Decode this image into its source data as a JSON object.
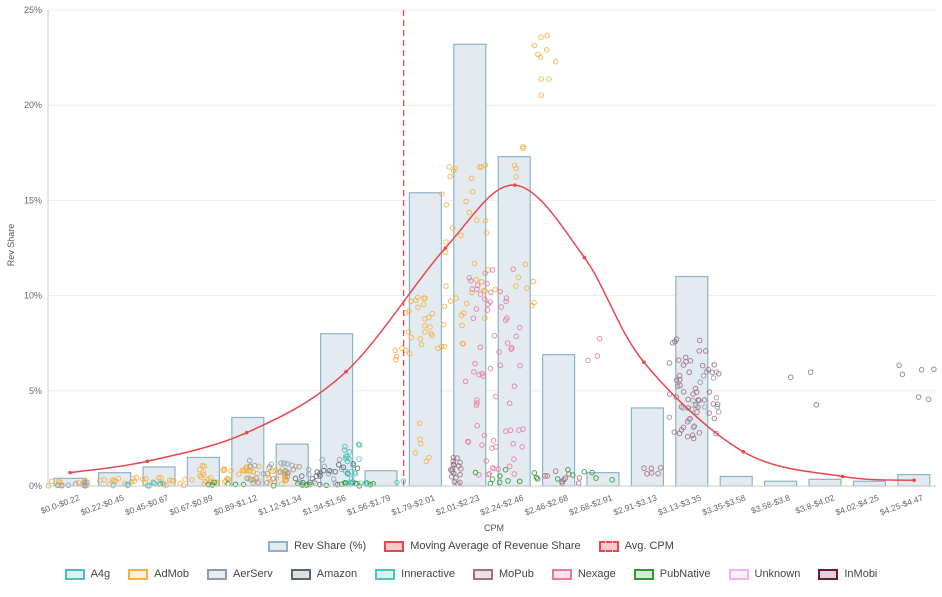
{
  "chart_data": {
    "type": "bar",
    "ylabel": "Rev Share",
    "xlabel": "CPM",
    "ylim": [
      0,
      25
    ],
    "y_ticks": [
      "0%",
      "5%",
      "10%",
      "15%",
      "20%",
      "25%"
    ],
    "y_tick_values": [
      0,
      5,
      10,
      15,
      20,
      25
    ],
    "categories": [
      "$0.0-$0.22",
      "$0.22-$0.45",
      "$0.45-$0.67",
      "$0.67-$0.89",
      "$0.89-$1.12",
      "$1.12-$1.34",
      "$1.34-$1.56",
      "$1.56-$1.79",
      "$1.79-$2.01",
      "$2.01-$2.23",
      "$2.24-$2.46",
      "$2.46-$2.68",
      "$2.68-$2.91",
      "$2.91-$3.13",
      "$3.13-$3.35",
      "$3.35-$3.58",
      "$3.58-$3.8",
      "$3.8-$4.02",
      "$4.02-$4.25",
      "$4.25-$4.47"
    ],
    "series": [
      {
        "name": "Rev Share (%)",
        "kind": "bar",
        "color": "#8fb3c6",
        "fill": "#e3ebf1",
        "values": [
          0.4,
          0.7,
          1.0,
          1.5,
          3.6,
          2.2,
          8.0,
          0.8,
          15.4,
          23.2,
          17.3,
          6.9,
          0.7,
          4.1,
          11.0,
          0.5,
          0.25,
          0.35,
          0.25,
          0.6
        ]
      },
      {
        "name": "Moving Average of Revenue Share",
        "kind": "line",
        "color": "#e8474d",
        "x": [
          0.111,
          0.5,
          1.0,
          1.5,
          2.0,
          2.35,
          2.7,
          3.0,
          3.5,
          4.0,
          4.36
        ],
        "values": [
          0.7,
          1.3,
          2.8,
          6.0,
          12.5,
          15.8,
          12.0,
          6.5,
          1.8,
          0.5,
          0.3
        ]
      },
      {
        "name": "Avg. CPM",
        "kind": "vline",
        "color": "#e8474d",
        "x": 1.79
      }
    ],
    "legend_placement": "bottom",
    "scatter_legend": [
      {
        "name": "A4g",
        "color": "#4dbfba"
      },
      {
        "name": "AdMob",
        "color": "#f5b041"
      },
      {
        "name": "AerServ",
        "color": "#8e9aad"
      },
      {
        "name": "Amazon",
        "color": "#5d6470"
      },
      {
        "name": "Inneractive",
        "color": "#48c9b0"
      },
      {
        "name": "MoPub",
        "color": "#a07080"
      },
      {
        "name": "Nexage",
        "color": "#e87a9b"
      },
      {
        "name": "PubNative",
        "color": "#2e9a2e"
      },
      {
        "name": "Unknown",
        "color": "#f0b5f0"
      },
      {
        "name": "InMobi",
        "color": "#6b1a3a"
      }
    ],
    "scatter_clusters": [
      {
        "network": "AdMob",
        "x": 0.1,
        "spread": 0.1,
        "ymin": 0.0,
        "ymax": 0.3,
        "n": 14
      },
      {
        "network": "AerServ",
        "x": 0.1,
        "spread": 0.1,
        "ymin": 0.0,
        "ymax": 0.2,
        "n": 8
      },
      {
        "network": "AdMob",
        "x": 0.55,
        "spread": 0.3,
        "ymin": 0.0,
        "ymax": 0.6,
        "n": 30
      },
      {
        "network": "A4g",
        "x": 0.45,
        "spread": 0.15,
        "ymin": 0.0,
        "ymax": 0.2,
        "n": 8
      },
      {
        "network": "AdMob",
        "x": 1.0,
        "spread": 0.25,
        "ymin": 0.1,
        "ymax": 1.1,
        "n": 60
      },
      {
        "network": "AerServ",
        "x": 1.25,
        "spread": 0.25,
        "ymin": 0.1,
        "ymax": 1.4,
        "n": 40
      },
      {
        "network": "Amazon",
        "x": 1.4,
        "spread": 0.18,
        "ymin": 0.0,
        "ymax": 1.2,
        "n": 20
      },
      {
        "network": "A4g",
        "x": 1.53,
        "spread": 0.04,
        "ymin": 0.0,
        "ymax": 2.5,
        "n": 18
      },
      {
        "network": "PubNative",
        "x": 1.1,
        "spread": 0.55,
        "ymin": 0.0,
        "ymax": 0.2,
        "n": 22
      },
      {
        "network": "Inneractive",
        "x": 1.65,
        "spread": 0.15,
        "ymin": 0.0,
        "ymax": 0.4,
        "n": 8
      },
      {
        "network": "AdMob",
        "x": 1.79,
        "spread": 0.05,
        "ymin": 6.0,
        "ymax": 7.5,
        "n": 4
      },
      {
        "network": "AdMob",
        "x": 1.95,
        "spread": 0.15,
        "ymin": 6.8,
        "ymax": 10.0,
        "n": 35
      },
      {
        "network": "AdMob",
        "x": 2.1,
        "spread": 0.12,
        "ymin": 8.0,
        "ymax": 17.5,
        "n": 30
      },
      {
        "network": "AdMob",
        "x": 2.32,
        "spread": 0.08,
        "ymin": 16.0,
        "ymax": 18.0,
        "n": 5
      },
      {
        "network": "AdMob",
        "x": 2.5,
        "spread": 0.06,
        "ymin": 20.5,
        "ymax": 23.8,
        "n": 10
      },
      {
        "network": "AdMob",
        "x": 2.35,
        "spread": 0.1,
        "ymin": 9.0,
        "ymax": 12.0,
        "n": 8
      },
      {
        "network": "AdMob",
        "x": 1.9,
        "spread": 0.1,
        "ymin": 1.0,
        "ymax": 3.5,
        "n": 6
      },
      {
        "network": "Nexage",
        "x": 2.25,
        "spread": 0.15,
        "ymin": 0.5,
        "ymax": 12.0,
        "n": 70
      },
      {
        "network": "MoPub",
        "x": 2.05,
        "spread": 0.03,
        "ymin": 0.1,
        "ymax": 1.5,
        "n": 18
      },
      {
        "network": "MoPub",
        "x": 2.6,
        "spread": 0.1,
        "ymin": 0.1,
        "ymax": 1.0,
        "n": 10
      },
      {
        "network": "PubNative",
        "x": 2.5,
        "spread": 0.35,
        "ymin": 0.0,
        "ymax": 0.9,
        "n": 18
      },
      {
        "network": "Nexage",
        "x": 2.75,
        "spread": 0.1,
        "ymin": 6.5,
        "ymax": 8.0,
        "n": 3
      },
      {
        "network": "MoPub",
        "x": 3.25,
        "spread": 0.13,
        "ymin": 2.5,
        "ymax": 7.8,
        "n": 55
      },
      {
        "network": "AerServ",
        "x": 3.25,
        "spread": 0.13,
        "ymin": 3.0,
        "ymax": 6.0,
        "n": 15
      },
      {
        "network": "MoPub",
        "x": 3.05,
        "spread": 0.08,
        "ymin": 0.3,
        "ymax": 1.0,
        "n": 6
      },
      {
        "network": "MoPub",
        "x": 3.8,
        "spread": 0.1,
        "ymin": 3.5,
        "ymax": 6.0,
        "n": 3
      },
      {
        "network": "MoPub",
        "x": 4.38,
        "spread": 0.1,
        "ymin": 1.3,
        "ymax": 6.5,
        "n": 6
      }
    ]
  }
}
